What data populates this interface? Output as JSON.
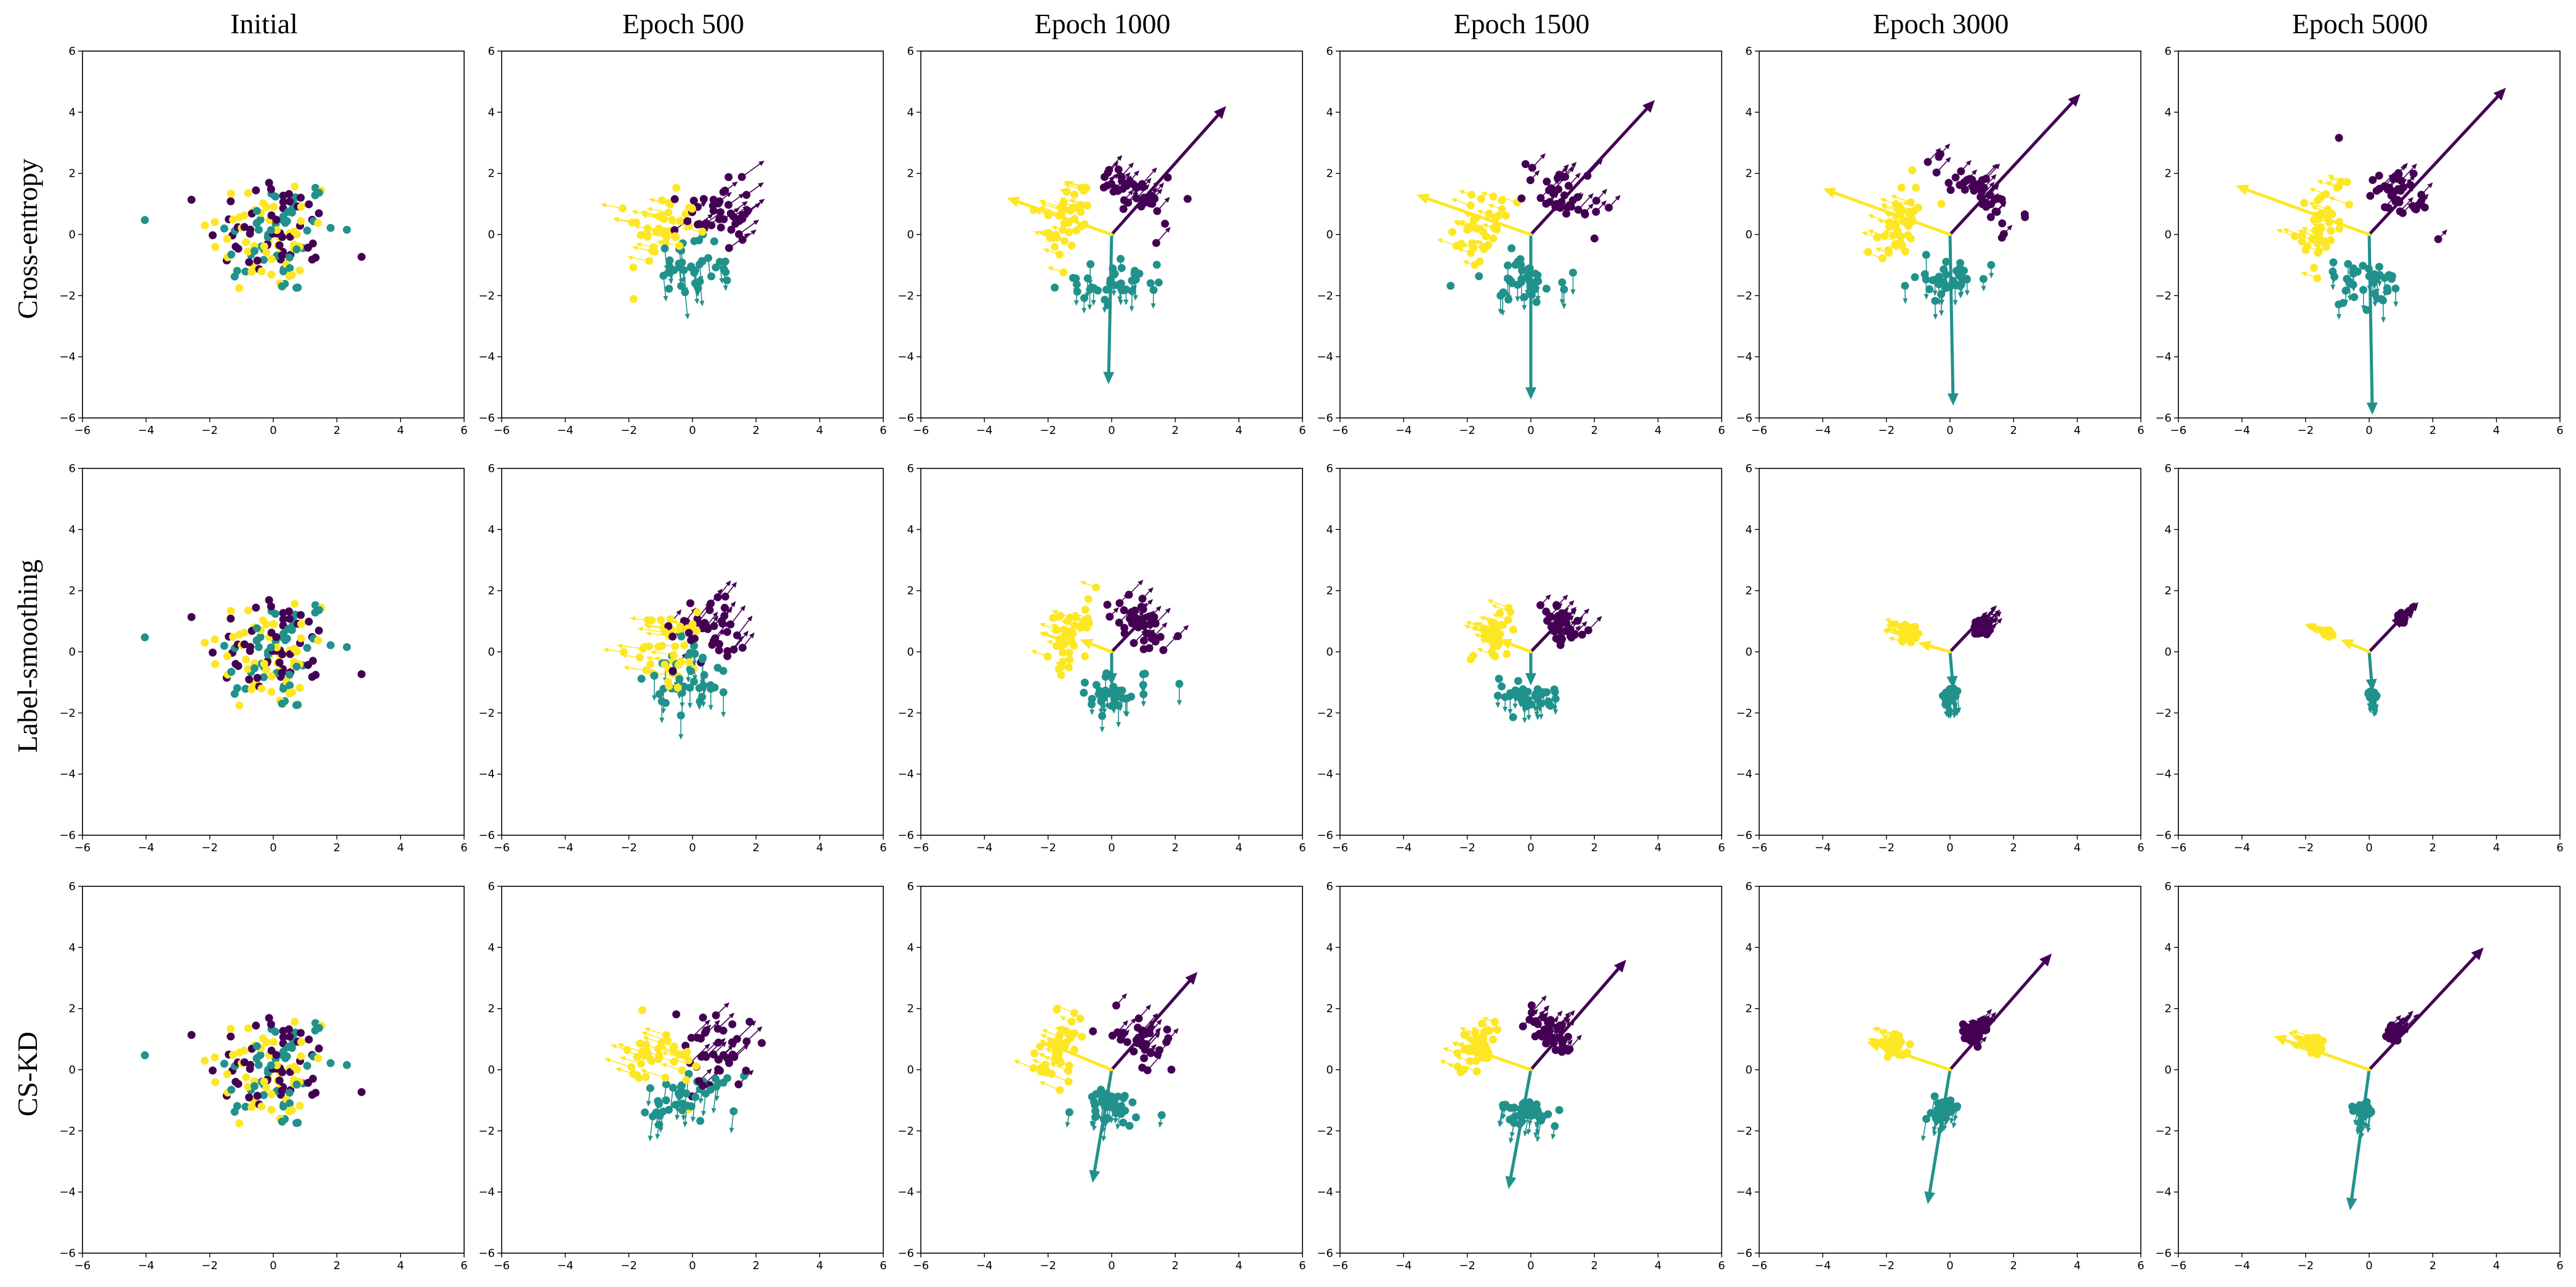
{
  "colors": {
    "class_0": "#440154",
    "class_1": "#21918c",
    "class_2": "#fde725"
  },
  "column_titles": [
    "Initial",
    "Epoch 500",
    "Epoch 1000",
    "Epoch 1500",
    "Epoch 3000",
    "Epoch 5000"
  ],
  "row_titles": [
    "Cross-entropy",
    "Label-smoothing",
    "CS-KD"
  ],
  "axes": {
    "xlim": [
      -6,
      6
    ],
    "ylim": [
      -6,
      6
    ],
    "ticks": [
      -6,
      -4,
      -2,
      0,
      2,
      4,
      6
    ],
    "tick_labels": [
      "−6",
      "−4",
      "−2",
      "0",
      "2",
      "4",
      "6"
    ]
  },
  "chart_data": {
    "type": "scatter",
    "description_of_marks": "3-class 2D penultimate features (points) with per-sample gradient arrows and per-class weight vectors (thick arrows from origin)",
    "series_colors": [
      "#440154",
      "#21918c",
      "#fde725"
    ],
    "xlim": [
      -6,
      6
    ],
    "ylim": [
      -6,
      6
    ],
    "panels": [
      {
        "row": "Cross-entropy",
        "col": "Initial",
        "state": "mixed",
        "spread": 1.0,
        "centers": [
          [
            0,
            0
          ],
          [
            0,
            0
          ],
          [
            0,
            0
          ]
        ],
        "weights": null
      },
      {
        "row": "Cross-entropy",
        "col": "Epoch 500",
        "state": "partial",
        "spread": 0.55,
        "centers": [
          [
            0.8,
            0.6
          ],
          [
            0.1,
            -1.0
          ],
          [
            -1.0,
            0.2
          ]
        ],
        "weights": null
      },
      {
        "row": "Cross-entropy",
        "col": "Epoch 1000",
        "state": "separated",
        "spread": 0.35,
        "centers": [
          [
            0.8,
            1.3
          ],
          [
            0.0,
            -1.5
          ],
          [
            -1.4,
            0.4
          ]
        ],
        "weights": [
          [
            3.6,
            4.2
          ],
          [
            -0.1,
            -4.9
          ],
          [
            -3.3,
            1.2
          ]
        ]
      },
      {
        "row": "Cross-entropy",
        "col": "Epoch 1500",
        "state": "separated",
        "spread": 0.35,
        "centers": [
          [
            0.9,
            1.3
          ],
          [
            0.0,
            -1.5
          ],
          [
            -1.5,
            0.4
          ]
        ],
        "weights": [
          [
            3.9,
            4.4
          ],
          [
            0.0,
            -5.4
          ],
          [
            -3.6,
            1.3
          ]
        ]
      },
      {
        "row": "Cross-entropy",
        "col": "Epoch 3000",
        "state": "separated",
        "spread": 0.35,
        "centers": [
          [
            0.9,
            1.3
          ],
          [
            0.0,
            -1.5
          ],
          [
            -1.5,
            0.4
          ]
        ],
        "weights": [
          [
            4.1,
            4.6
          ],
          [
            0.1,
            -5.6
          ],
          [
            -4.0,
            1.5
          ]
        ]
      },
      {
        "row": "Cross-entropy",
        "col": "Epoch 5000",
        "state": "separated",
        "spread": 0.35,
        "centers": [
          [
            0.9,
            1.3
          ],
          [
            0.0,
            -1.5
          ],
          [
            -1.5,
            0.4
          ]
        ],
        "weights": [
          [
            4.3,
            4.8
          ],
          [
            0.1,
            -5.9
          ],
          [
            -4.2,
            1.6
          ]
        ]
      },
      {
        "row": "Label-smoothing",
        "col": "Initial",
        "state": "mixed",
        "spread": 1.0,
        "centers": [
          [
            0,
            0
          ],
          [
            0,
            0
          ],
          [
            0,
            0
          ]
        ],
        "weights": null
      },
      {
        "row": "Label-smoothing",
        "col": "Epoch 500",
        "state": "partial",
        "spread": 0.6,
        "centers": [
          [
            0.6,
            0.8
          ],
          [
            0.0,
            -0.8
          ],
          [
            -0.7,
            0.1
          ]
        ],
        "weights": null
      },
      {
        "row": "Label-smoothing",
        "col": "Epoch 1000",
        "state": "separated",
        "spread": 0.3,
        "centers": [
          [
            0.9,
            1.0
          ],
          [
            0.0,
            -1.3
          ],
          [
            -1.3,
            0.5
          ]
        ],
        "weights": [
          [
            1.2,
            1.3
          ],
          [
            0.0,
            -1.1
          ],
          [
            -1.0,
            0.4
          ]
        ]
      },
      {
        "row": "Label-smoothing",
        "col": "Epoch 1500",
        "state": "separated",
        "spread": 0.25,
        "centers": [
          [
            0.9,
            0.9
          ],
          [
            0.0,
            -1.4
          ],
          [
            -1.2,
            0.5
          ]
        ],
        "weights": [
          [
            1.2,
            1.3
          ],
          [
            0.0,
            -1.1
          ],
          [
            -1.0,
            0.4
          ]
        ]
      },
      {
        "row": "Label-smoothing",
        "col": "Epoch 3000",
        "state": "collapsed",
        "spread": 0.12,
        "centers": [
          [
            1.0,
            0.8
          ],
          [
            0.0,
            -1.4
          ],
          [
            -1.3,
            0.6
          ]
        ],
        "weights": [
          [
            1.1,
            1.2
          ],
          [
            0.1,
            -1.2
          ],
          [
            -1.0,
            0.3
          ]
        ]
      },
      {
        "row": "Label-smoothing",
        "col": "Epoch 5000",
        "state": "collapsed",
        "spread": 0.06,
        "centers": [
          [
            1.0,
            1.1
          ],
          [
            0.1,
            -1.4
          ],
          [
            -1.3,
            0.6
          ]
        ],
        "weights": [
          [
            1.1,
            1.2
          ],
          [
            0.1,
            -1.3
          ],
          [
            -0.9,
            0.4
          ]
        ]
      },
      {
        "row": "CS-KD",
        "col": "Initial",
        "state": "mixed",
        "spread": 1.0,
        "centers": [
          [
            0,
            0
          ],
          [
            0,
            0
          ],
          [
            0,
            0
          ]
        ],
        "weights": null
      },
      {
        "row": "CS-KD",
        "col": "Epoch 500",
        "state": "partial",
        "spread": 0.6,
        "centers": [
          [
            0.7,
            0.7
          ],
          [
            -0.1,
            -0.9
          ],
          [
            -0.9,
            0.3
          ]
        ],
        "weights": null
      },
      {
        "row": "CS-KD",
        "col": "Epoch 1000",
        "state": "separated",
        "spread": 0.3,
        "centers": [
          [
            0.9,
            1.0
          ],
          [
            0.0,
            -1.2
          ],
          [
            -1.6,
            0.7
          ]
        ],
        "weights": [
          [
            2.7,
            3.2
          ],
          [
            -0.6,
            -3.7
          ],
          [
            -2.1,
            0.9
          ]
        ]
      },
      {
        "row": "CS-KD",
        "col": "Epoch 1500",
        "state": "separated",
        "spread": 0.25,
        "centers": [
          [
            0.6,
            1.2
          ],
          [
            -0.2,
            -1.3
          ],
          [
            -1.7,
            0.8
          ]
        ],
        "weights": [
          [
            3.0,
            3.6
          ],
          [
            -0.7,
            -3.9
          ],
          [
            -2.2,
            0.8
          ]
        ]
      },
      {
        "row": "CS-KD",
        "col": "Epoch 3000",
        "state": "collapsed",
        "spread": 0.18,
        "centers": [
          [
            0.8,
            1.2
          ],
          [
            -0.2,
            -1.3
          ],
          [
            -1.8,
            0.8
          ]
        ],
        "weights": [
          [
            3.2,
            3.8
          ],
          [
            -0.7,
            -4.4
          ],
          [
            -2.6,
            0.9
          ]
        ]
      },
      {
        "row": "CS-KD",
        "col": "Epoch 5000",
        "state": "collapsed",
        "spread": 0.12,
        "centers": [
          [
            0.8,
            1.2
          ],
          [
            -0.2,
            -1.3
          ],
          [
            -1.7,
            0.8
          ]
        ],
        "weights": [
          [
            3.6,
            4.0
          ],
          [
            -0.6,
            -4.6
          ],
          [
            -3.0,
            1.1
          ]
        ]
      }
    ]
  }
}
